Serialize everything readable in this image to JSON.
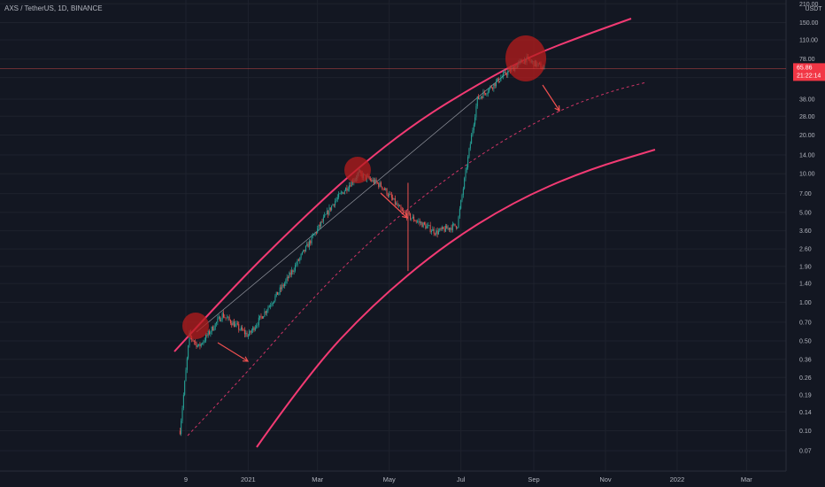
{
  "chart_data": {
    "type": "candlestick",
    "title": "AXS / TetherUS, 1D, BINANCE",
    "currency": "USDT",
    "scale": "log",
    "y_ticks": [
      0.07,
      0.1,
      0.14,
      0.19,
      0.26,
      0.36,
      0.5,
      0.7,
      1.0,
      1.4,
      1.9,
      2.6,
      3.6,
      5.0,
      7.0,
      10.0,
      14.0,
      20.0,
      28.0,
      38.0,
      56.0,
      78.0,
      110.0,
      150.0,
      210.0
    ],
    "y_tick_labels": [
      "0.07",
      "0.10",
      "0.14",
      "0.19",
      "0.26",
      "0.36",
      "0.50",
      "0.70",
      "1.00",
      "1.40",
      "1.90",
      "2.60",
      "3.60",
      "5.00",
      "7.00",
      "10.00",
      "14.00",
      "20.00",
      "28.00",
      "38.00",
      "56.00",
      "78.00",
      "110.00",
      "150.00",
      "210.00"
    ],
    "x_tick_labels": [
      "9",
      "2021",
      "Mar",
      "May",
      "Jul",
      "Sep",
      "Nov",
      "2022",
      "Mar"
    ],
    "last_price": 65.86,
    "last_price_label": "65.86",
    "countdown_label": "21:22:14",
    "colors": {
      "background": "#131722",
      "up": "#26a69a",
      "down": "#ef5350",
      "channel": "#f23a73",
      "annotation": "#f05050",
      "text": "#b2b5be"
    },
    "candles_summary": [
      {
        "date": "2020-11-04",
        "close": 0.1
      },
      {
        "date": "2020-11-12",
        "close": 0.55
      },
      {
        "date": "2020-11-20",
        "close": 0.45
      },
      {
        "date": "2020-12-10",
        "close": 0.8
      },
      {
        "date": "2021-01-01",
        "close": 0.55
      },
      {
        "date": "2021-02-01",
        "close": 1.4
      },
      {
        "date": "2021-03-15",
        "close": 6.0
      },
      {
        "date": "2021-04-05",
        "close": 10.0
      },
      {
        "date": "2021-04-25",
        "close": 8.0
      },
      {
        "date": "2021-05-12",
        "close": 5.0
      },
      {
        "date": "2021-06-10",
        "close": 3.5
      },
      {
        "date": "2021-06-28",
        "close": 4.0
      },
      {
        "date": "2021-07-15",
        "close": 38.0
      },
      {
        "date": "2021-08-08",
        "close": 60.0
      },
      {
        "date": "2021-08-25",
        "close": 78.0
      },
      {
        "date": "2021-09-10",
        "close": 65.86
      }
    ]
  }
}
